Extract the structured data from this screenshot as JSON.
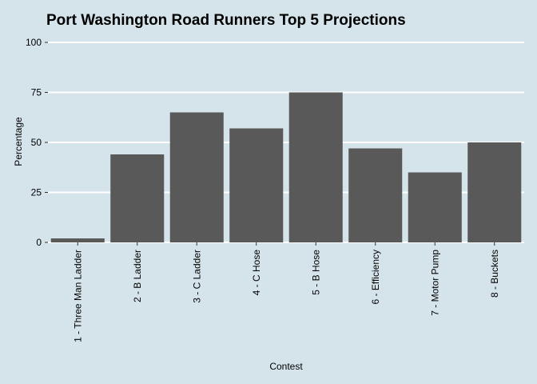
{
  "chart_data": {
    "type": "bar",
    "title": "Port Washington Road Runners Top 5 Projections",
    "xlabel": "Contest",
    "ylabel": "Percentage",
    "categories": [
      "1 - Three Man Ladder",
      "2 - B Ladder",
      "3 - C Ladder",
      "4 - C Hose",
      "5 - B Hose",
      "6 - Efficiency",
      "7 - Motor Pump",
      "8 - Buckets"
    ],
    "values": [
      2,
      44,
      65,
      57,
      75,
      47,
      35,
      50
    ],
    "ylim": [
      0,
      100
    ],
    "yticks": [
      0,
      25,
      50,
      75,
      100
    ],
    "grid": true,
    "bar_color": "#595959",
    "background_color": "#d5e4eb"
  }
}
